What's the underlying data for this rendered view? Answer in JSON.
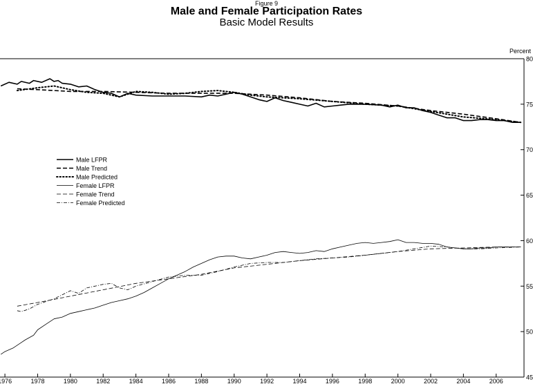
{
  "figure_label": "Figure 9",
  "title": "Male and Female Participation Rates",
  "subtitle": "Basic Model Results",
  "chart_data": {
    "type": "line",
    "title": "Male and Female Participation Rates",
    "subtitle": "Basic Model Results",
    "ylabel": "Percent",
    "xlabel": "",
    "xlim": [
      1975.7,
      2007.7
    ],
    "ylim": [
      45,
      80
    ],
    "x_ticks": [
      {
        "x": 1976,
        "label": "1976"
      },
      {
        "x": 1978,
        "label": "1978"
      },
      {
        "x": 1980,
        "label": "1980"
      },
      {
        "x": 1982,
        "label": "1982"
      },
      {
        "x": 1984,
        "label": "1984"
      },
      {
        "x": 1986,
        "label": "1986"
      },
      {
        "x": 1988,
        "label": "1988"
      },
      {
        "x": 1990,
        "label": "1990"
      },
      {
        "x": 1992,
        "label": "1992"
      },
      {
        "x": 1994,
        "label": "1994"
      },
      {
        "x": 1996,
        "label": "1996"
      },
      {
        "x": 1998,
        "label": "1998"
      },
      {
        "x": 2000,
        "label": "2000"
      },
      {
        "x": 2002,
        "label": "2002"
      },
      {
        "x": 2004,
        "label": "2004"
      },
      {
        "x": 2006,
        "label": "2006"
      }
    ],
    "y_ticks": [
      {
        "y": 45,
        "label": "45"
      },
      {
        "y": 50,
        "label": "50"
      },
      {
        "y": 55,
        "label": "55"
      },
      {
        "y": 60,
        "label": "60"
      },
      {
        "y": 65,
        "label": "65"
      },
      {
        "y": 70,
        "label": "70"
      },
      {
        "y": 75,
        "label": "75"
      },
      {
        "y": 80,
        "label": "80"
      }
    ],
    "y_axis_side": "right",
    "grid": false,
    "legend_position": "left-middle",
    "series": [
      {
        "name": "Male LFPR",
        "style": "solid",
        "weight": "heavy",
        "color": "#000000",
        "x": [
          1975.75,
          1976.25,
          1976.75,
          1977.0,
          1977.5,
          1977.75,
          1978.25,
          1978.75,
          1979.0,
          1979.25,
          1979.5,
          1980.0,
          1980.5,
          1981.0,
          1981.5,
          1982.0,
          1982.5,
          1983.0,
          1983.5,
          1984.0,
          1985.0,
          1986.0,
          1987.0,
          1988.0,
          1988.5,
          1989.0,
          1989.5,
          1990.0,
          1990.5,
          1991.0,
          1991.5,
          1992.0,
          1992.5,
          1993.0,
          1993.5,
          1994.0,
          1994.5,
          1995.0,
          1995.5,
          1996.0,
          1996.5,
          1997.0,
          1998.0,
          1999.0,
          1999.5,
          2000.0,
          2000.5,
          2001.0,
          2001.5,
          2002.0,
          2002.5,
          2003.0,
          2003.5,
          2004.0,
          2004.5,
          2005.0,
          2005.5,
          2006.0,
          2006.5,
          2007.0,
          2007.5
        ],
        "y": [
          77.0,
          77.4,
          77.2,
          77.5,
          77.3,
          77.6,
          77.4,
          77.8,
          77.5,
          77.6,
          77.3,
          77.2,
          76.9,
          77.0,
          76.6,
          76.3,
          76.2,
          75.8,
          76.2,
          76.0,
          75.9,
          75.9,
          75.9,
          75.8,
          76.0,
          75.9,
          76.1,
          76.3,
          76.1,
          75.8,
          75.5,
          75.3,
          75.7,
          75.4,
          75.2,
          75.0,
          74.8,
          75.1,
          74.7,
          74.8,
          74.9,
          75.0,
          75.0,
          74.9,
          74.7,
          74.9,
          74.6,
          74.6,
          74.3,
          74.1,
          73.8,
          73.5,
          73.5,
          73.2,
          73.2,
          73.3,
          73.3,
          73.2,
          73.2,
          73.0,
          73.0
        ]
      },
      {
        "name": "Male Trend",
        "style": "dashed",
        "weight": "heavy",
        "color": "#000000",
        "x": [
          1976.75,
          1978.0,
          1980.0,
          1982.0,
          1984.0,
          1986.0,
          1988.0,
          1990.0,
          1992.0,
          1994.0,
          1996.0,
          1998.0,
          2000.0,
          2002.0,
          2004.0,
          2006.0,
          2007.5
        ],
        "y": [
          76.7,
          76.6,
          76.4,
          76.4,
          76.3,
          76.2,
          76.2,
          76.2,
          76.0,
          75.7,
          75.3,
          75.1,
          74.8,
          74.3,
          73.9,
          73.4,
          73.0
        ]
      },
      {
        "name": "Male Predicted",
        "style": "dotted",
        "weight": "heavy",
        "color": "#000000",
        "x": [
          1976.75,
          1978.0,
          1979.0,
          1980.0,
          1981.0,
          1982.0,
          1982.5,
          1983.0,
          1984.0,
          1985.0,
          1986.0,
          1987.0,
          1988.0,
          1989.0,
          1990.0,
          1991.0,
          1992.0,
          1994.0,
          1996.0,
          1998.0,
          2000.0,
          2002.0,
          2004.0,
          2006.0,
          2007.5
        ],
        "y": [
          76.5,
          76.8,
          77.0,
          76.6,
          76.3,
          76.2,
          76.0,
          75.8,
          76.4,
          76.3,
          76.1,
          76.2,
          76.4,
          76.5,
          76.3,
          76.0,
          75.8,
          75.6,
          75.3,
          75.0,
          74.8,
          74.2,
          73.6,
          73.3,
          73.0
        ]
      },
      {
        "name": "Female LFPR",
        "style": "solid",
        "weight": "light",
        "color": "#000000",
        "x": [
          1975.75,
          1976.0,
          1976.5,
          1977.0,
          1977.25,
          1977.75,
          1978.0,
          1978.5,
          1979.0,
          1979.5,
          1980.0,
          1980.5,
          1981.0,
          1981.5,
          1982.0,
          1982.5,
          1983.0,
          1983.5,
          1984.0,
          1984.5,
          1985.0,
          1985.5,
          1986.0,
          1986.5,
          1987.0,
          1987.5,
          1988.0,
          1988.5,
          1989.0,
          1989.5,
          1990.0,
          1990.5,
          1991.0,
          1991.5,
          1992.0,
          1992.5,
          1993.0,
          1993.5,
          1994.0,
          1994.5,
          1995.0,
          1995.5,
          1996.0,
          1996.5,
          1997.0,
          1997.5,
          1998.0,
          1998.5,
          1999.0,
          1999.5,
          2000.0,
          2000.5,
          2001.0,
          2001.5,
          2002.0,
          2002.5,
          2003.0,
          2003.5,
          2004.0,
          2004.5,
          2005.0,
          2005.5,
          2006.0,
          2006.5,
          2007.0,
          2007.5
        ],
        "y": [
          47.5,
          47.8,
          48.2,
          48.8,
          49.1,
          49.6,
          50.2,
          50.8,
          51.4,
          51.6,
          52.0,
          52.2,
          52.4,
          52.6,
          52.9,
          53.2,
          53.4,
          53.6,
          53.9,
          54.3,
          54.8,
          55.3,
          55.8,
          56.2,
          56.6,
          57.1,
          57.5,
          57.9,
          58.2,
          58.3,
          58.3,
          58.1,
          58.0,
          58.2,
          58.4,
          58.7,
          58.8,
          58.7,
          58.6,
          58.7,
          58.9,
          58.8,
          59.1,
          59.3,
          59.5,
          59.7,
          59.8,
          59.7,
          59.8,
          59.9,
          60.1,
          59.8,
          59.8,
          59.7,
          59.7,
          59.6,
          59.3,
          59.2,
          59.1,
          59.1,
          59.2,
          59.2,
          59.3,
          59.3,
          59.3,
          59.3
        ]
      },
      {
        "name": "Female Trend",
        "style": "dashed",
        "weight": "light",
        "color": "#000000",
        "x": [
          1976.75,
          1978.0,
          1980.0,
          1982.0,
          1984.0,
          1986.0,
          1988.0,
          1990.0,
          1992.0,
          1994.0,
          1996.0,
          1998.0,
          2000.0,
          2002.0,
          2004.0,
          2006.0,
          2007.5
        ],
        "y": [
          52.8,
          53.2,
          53.9,
          54.6,
          55.3,
          55.8,
          56.3,
          57.0,
          57.4,
          57.8,
          58.1,
          58.4,
          58.8,
          59.1,
          59.2,
          59.3,
          59.3
        ]
      },
      {
        "name": "Female Predicted",
        "style": "dashdot",
        "weight": "light",
        "color": "#000000",
        "x": [
          1976.75,
          1977.0,
          1977.5,
          1978.0,
          1979.0,
          1980.0,
          1980.5,
          1981.0,
          1982.0,
          1982.5,
          1983.0,
          1983.5,
          1984.0,
          1985.0,
          1986.0,
          1987.0,
          1988.0,
          1989.0,
          1990.0,
          1991.0,
          1992.0,
          1993.0,
          1994.0,
          1995.0,
          1996.0,
          1997.0,
          1998.0,
          1999.0,
          2000.0,
          2001.0,
          2002.0,
          2003.0,
          2004.0,
          2005.0,
          2006.0,
          2007.5
        ],
        "y": [
          52.3,
          52.2,
          52.5,
          53.0,
          53.6,
          54.5,
          54.2,
          54.8,
          55.2,
          55.3,
          54.8,
          54.6,
          55.0,
          55.5,
          56.0,
          56.2,
          56.2,
          56.6,
          57.1,
          57.5,
          57.6,
          57.6,
          57.8,
          58.0,
          58.1,
          58.2,
          58.4,
          58.6,
          58.8,
          59.1,
          59.4,
          59.3,
          59.1,
          59.1,
          59.2,
          59.3
        ]
      }
    ]
  }
}
